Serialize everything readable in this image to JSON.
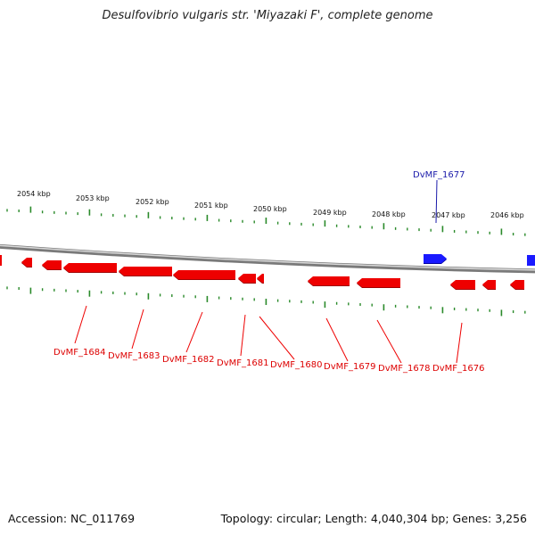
{
  "title": "Desulfovibrio vulgaris str. 'Miyazaki F', complete genome",
  "accession": "Accession: NC_011769",
  "summary": "Topology: circular; Length: 4,040,304 bp; Genes: 3,256",
  "colors": {
    "forward_gene": "#1a1aff",
    "reverse_gene": "#ee0000",
    "tick": "#2a8a2a",
    "backbone": "#888888",
    "reverse_label": "#dd0000",
    "forward_label": "#1a1aaa"
  },
  "scale_labels": [
    "2054 kbp",
    "2053 kbp",
    "2052 kbp",
    "2051 kbp",
    "2050 kbp",
    "2049 kbp",
    "2048 kbp",
    "2047 kbp",
    "2046 kbp"
  ],
  "forward_genes": [
    {
      "name": "DvMF_1677"
    }
  ],
  "reverse_genes": [
    {
      "name": "DvMF_1684"
    },
    {
      "name": "DvMF_1683"
    },
    {
      "name": "DvMF_1682"
    },
    {
      "name": "DvMF_1681"
    },
    {
      "name": "DvMF_1680"
    },
    {
      "name": "DvMF_1679"
    },
    {
      "name": "DvMF_1678"
    },
    {
      "name": "DvMF_1676"
    }
  ]
}
